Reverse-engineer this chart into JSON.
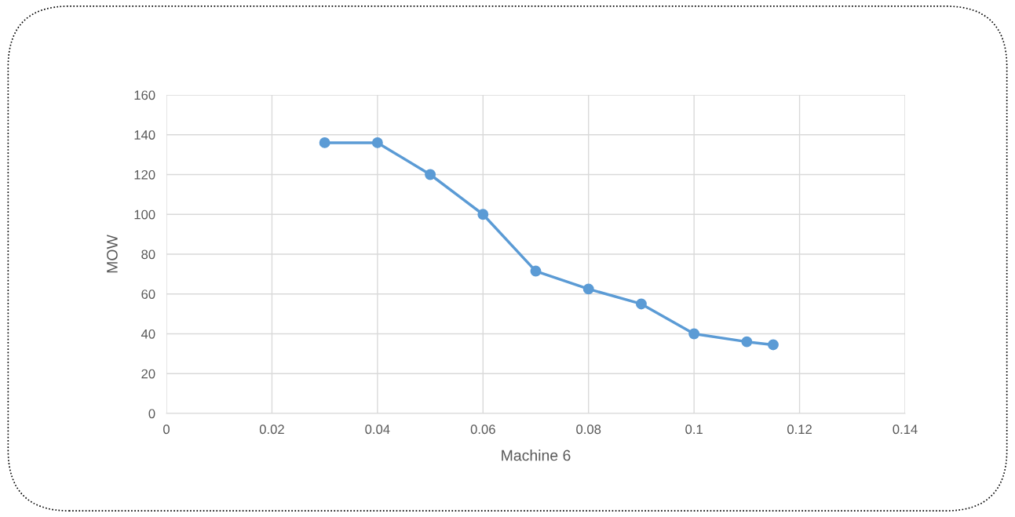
{
  "chart_data": {
    "type": "line",
    "xlabel": "Machine 6",
    "ylabel": "MOW",
    "x": [
      0.03,
      0.04,
      0.05,
      0.06,
      0.07,
      0.08,
      0.09,
      0.1,
      0.11,
      0.115
    ],
    "series": [
      {
        "color": "#5b9bd5",
        "values": [
          136,
          136,
          120,
          100,
          71.5,
          62.5,
          55,
          40,
          36,
          34.5
        ]
      }
    ],
    "xlim": [
      0,
      0.14
    ],
    "xticks": [
      0,
      0.02,
      0.04,
      0.06,
      0.08,
      0.1,
      0.12,
      0.14
    ],
    "ylim": [
      0,
      160
    ],
    "yticks": [
      0,
      20,
      40,
      60,
      80,
      100,
      120,
      140,
      160
    ],
    "grid": true,
    "legend": false,
    "marker": "circle",
    "line_style": "solid"
  }
}
